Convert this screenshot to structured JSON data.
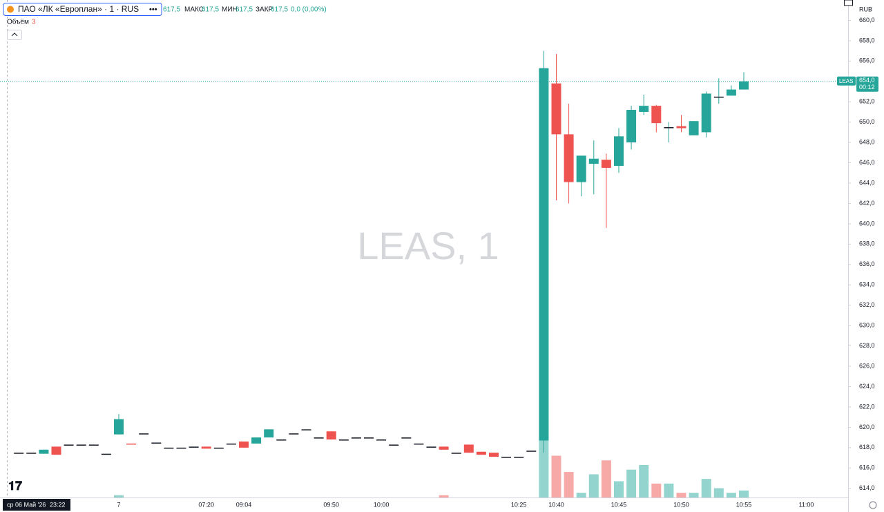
{
  "header": {
    "instrument": "ПАО «ЛК «Европлан» · 1 · RUS",
    "open_value": "617,5",
    "high_label": "МАКС",
    "high_value": "617,5",
    "low_label": "МИН",
    "low_value": "617,5",
    "close_label": "ЗАКР",
    "close_value": "617,5",
    "change": "0,0 (0,00%)",
    "volume_label": "Объём",
    "currency": "RUB"
  },
  "footer": {
    "date": "ср 06 Май '26",
    "time": "23:22"
  },
  "chart_data": {
    "type": "candlestick",
    "watermark": "LEAS, 1",
    "categories": [
      null,
      null,
      null,
      null,
      null,
      null,
      null,
      null,
      "7",
      null,
      null,
      null,
      null,
      null,
      null,
      "07:20",
      null,
      null,
      "09:04",
      null,
      null,
      null,
      null,
      null,
      null,
      "09:50",
      null,
      null,
      null,
      "10:00",
      null,
      null,
      null,
      null,
      null,
      null,
      null,
      null,
      null,
      null,
      "10:25",
      null,
      null,
      "10:40",
      null,
      null,
      null,
      null,
      "10:45",
      null,
      null,
      null,
      null,
      "10:50",
      null,
      null,
      null,
      null,
      "10:55",
      null,
      null,
      null,
      null,
      "11:00"
    ],
    "open": [
      617.5,
      617.5,
      617.4,
      618.1,
      618.3,
      618.3,
      618.3,
      617.4,
      619.3,
      618.4,
      619.4,
      618.5,
      618.0,
      618.0,
      618.1,
      618.1,
      618.0,
      618.4,
      618.6,
      618.4,
      619.0,
      618.8,
      619.4,
      619.8,
      619.0,
      619.6,
      618.8,
      619.0,
      619.0,
      618.8,
      618.3,
      619.0,
      618.4,
      618.1,
      618.1,
      617.5,
      618.3,
      617.6,
      617.5,
      617.1,
      617.1,
      617.7,
      618.7,
      653.8,
      648.8,
      644.1,
      645.9,
      646.3,
      645.7,
      648.0,
      651.0,
      651.6,
      649.5,
      649.6,
      648.7,
      649.0,
      652.5,
      652.6,
      653.2,
      null,
      null,
      null,
      null,
      null
    ],
    "high": [
      617.5,
      617.5,
      617.8,
      618.1,
      618.3,
      618.3,
      618.3,
      617.4,
      621.3,
      618.4,
      619.4,
      618.5,
      618.0,
      618.0,
      618.1,
      618.1,
      618.0,
      618.4,
      618.6,
      619.0,
      619.8,
      618.8,
      619.4,
      619.8,
      619.0,
      619.6,
      618.8,
      619.0,
      619.0,
      618.8,
      618.3,
      619.0,
      618.4,
      618.1,
      618.1,
      617.5,
      618.3,
      617.6,
      617.5,
      617.1,
      617.1,
      617.7,
      657.0,
      656.7,
      651.8,
      646.7,
      648.2,
      646.9,
      649.4,
      651.6,
      652.7,
      651.7,
      650.0,
      650.7,
      650.1,
      653.0,
      654.3,
      653.6,
      654.9,
      null,
      null,
      null,
      null,
      null
    ],
    "low": [
      617.5,
      617.5,
      617.4,
      617.3,
      618.3,
      618.3,
      618.3,
      617.4,
      619.3,
      618.3,
      619.4,
      618.5,
      618.0,
      618.0,
      618.1,
      617.9,
      618.0,
      618.4,
      618.0,
      618.4,
      619.0,
      618.8,
      619.4,
      619.8,
      619.0,
      618.8,
      618.8,
      619.0,
      619.0,
      618.8,
      618.3,
      619.0,
      618.4,
      618.1,
      617.8,
      617.5,
      617.5,
      617.3,
      617.1,
      617.1,
      617.1,
      617.7,
      617.5,
      642.3,
      642.0,
      642.7,
      642.9,
      639.6,
      645.0,
      647.3,
      650.7,
      649.0,
      648.0,
      649.0,
      648.7,
      648.5,
      651.8,
      652.6,
      653.2,
      null,
      null,
      null,
      null,
      null
    ],
    "close": [
      617.5,
      617.5,
      617.8,
      617.3,
      618.3,
      618.3,
      618.3,
      617.4,
      620.8,
      618.3,
      619.4,
      618.5,
      618.0,
      618.0,
      618.1,
      617.9,
      618.0,
      618.4,
      618.0,
      619.0,
      619.8,
      618.8,
      619.4,
      619.8,
      619.0,
      618.8,
      618.8,
      619.0,
      619.0,
      618.8,
      618.3,
      619.0,
      618.4,
      618.1,
      617.8,
      617.5,
      617.5,
      617.3,
      617.1,
      617.1,
      617.1,
      617.7,
      655.3,
      648.8,
      644.1,
      646.7,
      646.4,
      645.5,
      648.6,
      651.2,
      651.6,
      649.9,
      649.5,
      649.4,
      650.1,
      652.8,
      652.5,
      653.2,
      654.0,
      null,
      null,
      null,
      null,
      null
    ],
    "volume": [
      0,
      0,
      0,
      0,
      0,
      0,
      0,
      0,
      1,
      0,
      0,
      0,
      0,
      0,
      0,
      0,
      0,
      0,
      0,
      0,
      0,
      0,
      0,
      0,
      0,
      0,
      0,
      0,
      0,
      0,
      0,
      0,
      0,
      0,
      1,
      0,
      0,
      0,
      0,
      0,
      0,
      0,
      25,
      18,
      11,
      2,
      10,
      16,
      7,
      12,
      14,
      6,
      6,
      2,
      2,
      8,
      4,
      2,
      3,
      null,
      null,
      null,
      null,
      null
    ],
    "up_color": "#26a69a",
    "down_color": "#ef5350",
    "volume_up_color": "#93d5ce",
    "volume_down_color": "#f7a9a7",
    "ylim": [
      613.1,
      662.0
    ],
    "yticks": [
      {
        "value": 614,
        "label": "614,0"
      },
      {
        "value": 616,
        "label": "616,0"
      },
      {
        "value": 618,
        "label": "618,0"
      },
      {
        "value": 620,
        "label": "620,0"
      },
      {
        "value": 622,
        "label": "622,0"
      },
      {
        "value": 624,
        "label": "624,0"
      },
      {
        "value": 626,
        "label": "626,0"
      },
      {
        "value": 628,
        "label": "628,0"
      },
      {
        "value": 630,
        "label": "630,0"
      },
      {
        "value": 632,
        "label": "632,0"
      },
      {
        "value": 634,
        "label": "634,0"
      },
      {
        "value": 636,
        "label": "636,0"
      },
      {
        "value": 638,
        "label": "638,0"
      },
      {
        "value": 640,
        "label": "640,0"
      },
      {
        "value": 642,
        "label": "642,0"
      },
      {
        "value": 644,
        "label": "644,0"
      },
      {
        "value": 646,
        "label": "646,0"
      },
      {
        "value": 648,
        "label": "648,0"
      },
      {
        "value": 650,
        "label": "650,0"
      },
      {
        "value": 652,
        "label": "652,0"
      },
      {
        "value": 654,
        "label": "654,0"
      },
      {
        "value": 656,
        "label": "656,0"
      },
      {
        "value": 658,
        "label": "658,0"
      },
      {
        "value": 660,
        "label": "660,0"
      }
    ],
    "price_tag": {
      "symbol": "LEAS",
      "value": 654.0,
      "label": "654,0",
      "countdown": "00:12"
    }
  }
}
